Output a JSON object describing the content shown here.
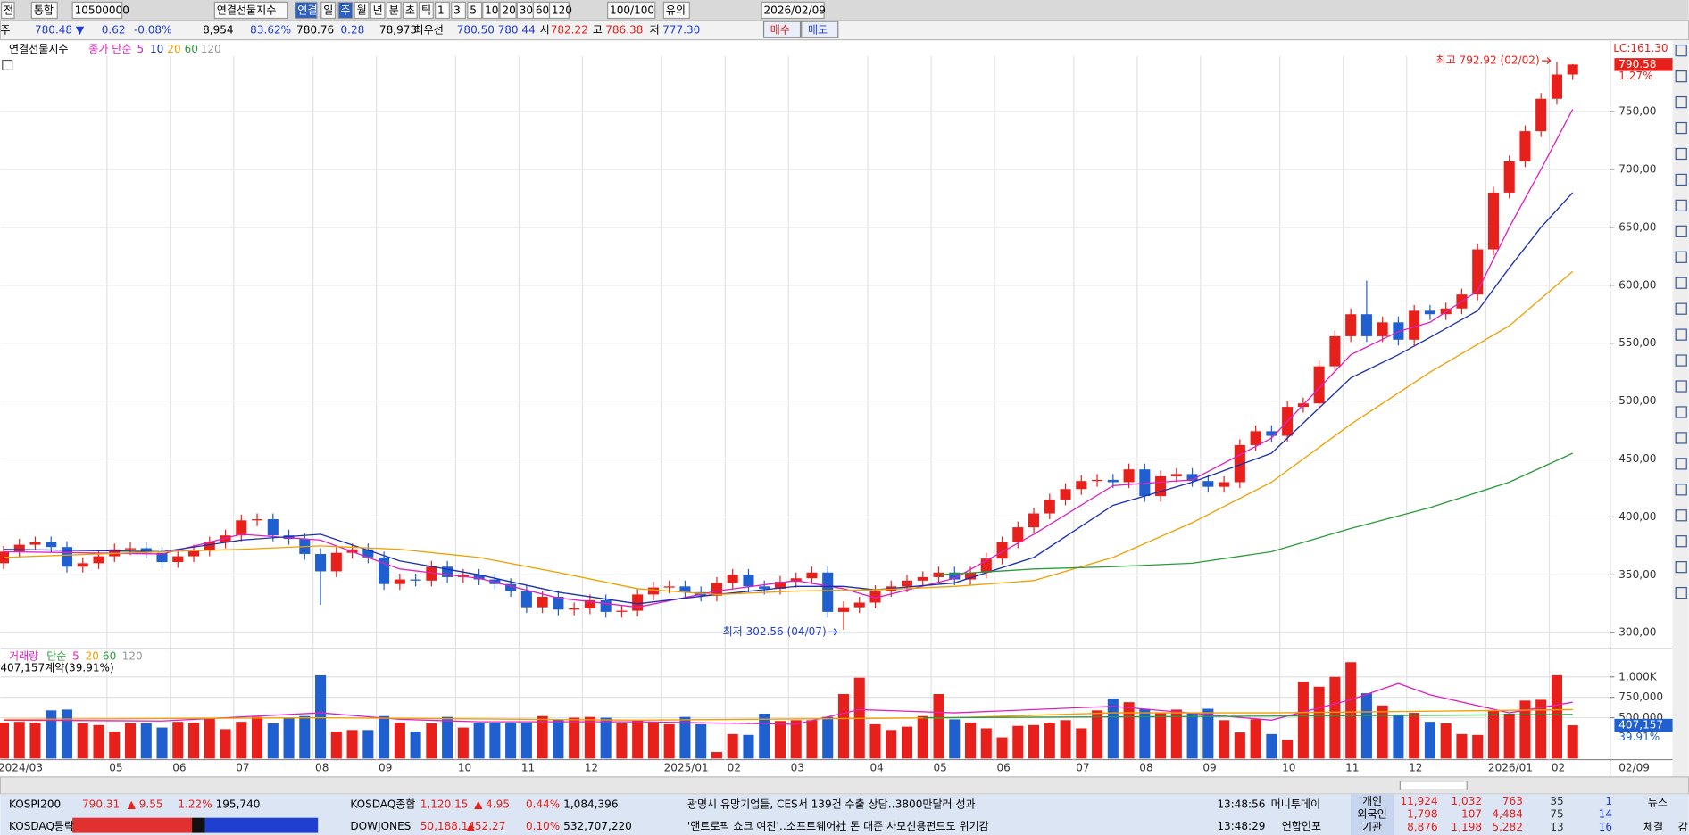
{
  "toolbar": [
    "전",
    "통합",
    "10500000",
    "연결선물지수",
    "연결",
    "일",
    "주",
    "월",
    "년",
    "분",
    "초",
    "틱",
    "1",
    "3",
    "5",
    "10",
    "20",
    "30",
    "60",
    "120",
    "100/100",
    "유의",
    "2026/02/09"
  ],
  "quote": [
    "주",
    "780.48 ▼",
    "0.62",
    "-0.08%",
    "8,954",
    "83.62%",
    "780.76",
    "0.28",
    "78,973",
    "최우선",
    "780.50",
    "780.44",
    "시",
    "782.22",
    "고",
    "786.38",
    "저",
    "777.30",
    "매수",
    "매도"
  ],
  "chart_data": [
    {
      "type": "candlestick",
      "title": "연결선물지수",
      "subtitle": "종가 단순",
      "categories": [
        "2024/03",
        null,
        null,
        null,
        null,
        null,
        null,
        "05",
        null,
        null,
        null,
        "06",
        null,
        null,
        null,
        "07",
        null,
        null,
        null,
        null,
        "08",
        null,
        null,
        null,
        "09",
        null,
        null,
        null,
        null,
        "10",
        null,
        null,
        null,
        "11",
        null,
        null,
        null,
        "12",
        null,
        null,
        null,
        null,
        "2025/01",
        null,
        null,
        null,
        "02",
        null,
        null,
        null,
        "03",
        null,
        null,
        null,
        null,
        "04",
        null,
        null,
        null,
        "05",
        null,
        null,
        null,
        "06",
        null,
        null,
        null,
        null,
        "07",
        null,
        null,
        null,
        "08",
        null,
        null,
        null,
        "09",
        null,
        null,
        null,
        null,
        "10",
        null,
        null,
        null,
        "11",
        null,
        null,
        null,
        "12",
        null,
        null,
        null,
        null,
        "2026/01",
        null,
        null,
        null,
        "02",
        null
      ],
      "x_end_label": "02/09",
      "open": [
        360,
        370,
        376,
        378,
        374,
        357,
        360,
        366,
        372,
        373,
        369,
        361,
        366,
        371,
        378,
        384,
        397,
        398,
        384,
        381,
        368,
        353,
        369,
        372,
        365,
        342,
        346,
        345,
        357,
        348,
        350,
        346,
        342,
        336,
        322,
        331,
        320,
        321,
        328,
        318,
        319,
        333,
        339,
        340,
        335,
        332,
        343,
        350,
        340,
        338,
        344,
        347,
        352,
        318,
        322,
        326,
        336,
        340,
        345,
        348,
        352,
        346,
        352,
        364,
        378,
        391,
        403,
        415,
        424,
        431,
        432,
        430,
        441,
        418,
        435,
        437,
        431,
        426,
        430,
        462,
        474,
        470,
        495,
        498,
        530,
        556,
        575,
        556,
        568,
        553,
        578,
        575,
        580,
        592,
        631,
        680,
        707,
        733,
        761,
        782
      ],
      "high": [
        375,
        381,
        383,
        383,
        379,
        365,
        371,
        377,
        378,
        378,
        374,
        371,
        376,
        383,
        389,
        402,
        403,
        403,
        389,
        386,
        373,
        374,
        377,
        377,
        370,
        351,
        351,
        362,
        362,
        355,
        355,
        351,
        347,
        341,
        336,
        336,
        326,
        333,
        333,
        324,
        338,
        344,
        345,
        345,
        340,
        348,
        355,
        355,
        345,
        349,
        352,
        357,
        357,
        327,
        331,
        341,
        345,
        350,
        353,
        357,
        357,
        357,
        369,
        383,
        396,
        408,
        420,
        429,
        436,
        437,
        437,
        446,
        446,
        440,
        442,
        442,
        436,
        435,
        467,
        479,
        479,
        500,
        503,
        535,
        561,
        580,
        604,
        573,
        573,
        583,
        583,
        585,
        597,
        636,
        685,
        712,
        738,
        766,
        792.92,
        791
      ],
      "low": [
        355,
        365,
        371,
        369,
        352,
        352,
        355,
        361,
        367,
        364,
        356,
        356,
        361,
        366,
        373,
        379,
        392,
        379,
        376,
        363,
        324,
        348,
        364,
        360,
        337,
        337,
        340,
        340,
        343,
        343,
        341,
        337,
        331,
        317,
        317,
        315,
        315,
        316,
        313,
        313,
        314,
        328,
        334,
        330,
        327,
        327,
        338,
        335,
        333,
        333,
        339,
        342,
        313,
        302.56,
        317,
        321,
        331,
        335,
        340,
        343,
        341,
        341,
        347,
        359,
        373,
        386,
        398,
        410,
        419,
        426,
        425,
        425,
        413,
        413,
        430,
        426,
        421,
        421,
        425,
        457,
        465,
        465,
        490,
        493,
        525,
        551,
        551,
        551,
        548,
        548,
        570,
        570,
        575,
        587,
        626,
        675,
        702,
        728,
        756,
        777.3
      ],
      "close": [
        370,
        376,
        378,
        374,
        357,
        360,
        366,
        372,
        373,
        369,
        361,
        366,
        371,
        378,
        384,
        397,
        398,
        384,
        381,
        368,
        353,
        369,
        372,
        365,
        342,
        346,
        345,
        357,
        348,
        350,
        346,
        342,
        336,
        322,
        331,
        320,
        321,
        328,
        318,
        319,
        333,
        339,
        340,
        335,
        332,
        343,
        350,
        340,
        338,
        344,
        347,
        352,
        318,
        322,
        326,
        336,
        340,
        345,
        348,
        352,
        346,
        352,
        364,
        378,
        391,
        403,
        415,
        424,
        431,
        432,
        430,
        441,
        418,
        435,
        437,
        431,
        426,
        430,
        462,
        474,
        470,
        495,
        498,
        530,
        556,
        575,
        556,
        568,
        553,
        578,
        575,
        580,
        592,
        631,
        680,
        707,
        733,
        761,
        782,
        790.58
      ],
      "up_color": "#e8201b",
      "down_color": "#1f5fcf",
      "ylim": [
        287,
        798
      ],
      "yticks": [
        {
          "value": 300,
          "label": "300,00"
        },
        {
          "value": 350,
          "label": "350,00"
        },
        {
          "value": 400,
          "label": "400,00"
        },
        {
          "value": 450,
          "label": "450,00"
        },
        {
          "value": 500,
          "label": "500,00"
        },
        {
          "value": 550,
          "label": "550,00"
        },
        {
          "value": 600,
          "label": "600,00"
        },
        {
          "value": 650,
          "label": "650,00"
        },
        {
          "value": 700,
          "label": "700,00"
        },
        {
          "value": 750,
          "label": "750,00"
        }
      ],
      "grid": true,
      "series": [
        {
          "name": "5",
          "color": "#e020c0",
          "x": [
            0,
            10,
            15,
            20,
            25,
            30,
            35,
            40,
            45,
            50,
            53,
            55,
            60,
            65,
            70,
            75,
            80,
            85,
            88,
            90,
            93,
            95,
            97,
            99
          ],
          "values": [
            370,
            368,
            385,
            380,
            355,
            347,
            330,
            322,
            336,
            345,
            338,
            330,
            347,
            385,
            427,
            432,
            468,
            540,
            560,
            568,
            595,
            650,
            700,
            752
          ]
        },
        {
          "name": "10",
          "color": "#1a2fb0",
          "x": [
            0,
            10,
            15,
            20,
            25,
            30,
            35,
            40,
            45,
            50,
            53,
            55,
            60,
            65,
            70,
            75,
            80,
            85,
            88,
            90,
            93,
            95,
            97,
            99
          ],
          "values": [
            372,
            370,
            380,
            385,
            362,
            350,
            335,
            325,
            333,
            340,
            340,
            337,
            343,
            365,
            410,
            430,
            455,
            520,
            540,
            555,
            578,
            615,
            650,
            680
          ]
        },
        {
          "name": "20",
          "color": "#f0a000",
          "x": [
            0,
            10,
            15,
            20,
            25,
            30,
            35,
            40,
            45,
            50,
            55,
            60,
            65,
            70,
            75,
            80,
            85,
            90,
            95,
            99
          ],
          "values": [
            365,
            370,
            372,
            375,
            372,
            365,
            352,
            338,
            333,
            336,
            337,
            340,
            345,
            365,
            395,
            430,
            480,
            525,
            565,
            612
          ]
        },
        {
          "name": "60",
          "color": "#2a9a3a",
          "x": [
            59,
            65,
            70,
            75,
            80,
            85,
            90,
            95,
            99
          ],
          "values": [
            350,
            355,
            357,
            360,
            370,
            390,
            408,
            430,
            455
          ]
        },
        {
          "name": "120",
          "color": "#999999",
          "x": [],
          "values": []
        }
      ],
      "annotations": [
        "최고 792.92 (02/02)",
        "최저 302.56 (04/07)"
      ],
      "lc_label": "LC:161.30",
      "change_label": "1.27%"
    },
    {
      "type": "bar",
      "title": "거래량",
      "subtitle": "단순",
      "header_value": "407,157계약(39.91%)",
      "values": [
        440000,
        450000,
        440000,
        590000,
        600000,
        430000,
        410000,
        330000,
        430000,
        430000,
        380000,
        450000,
        440000,
        500000,
        360000,
        450000,
        510000,
        430000,
        500000,
        520000,
        1020000,
        330000,
        350000,
        350000,
        520000,
        440000,
        330000,
        430000,
        510000,
        380000,
        440000,
        440000,
        440000,
        440000,
        520000,
        480000,
        500000,
        510000,
        500000,
        430000,
        470000,
        450000,
        420000,
        510000,
        420000,
        80000,
        300000,
        290000,
        550000,
        460000,
        470000,
        470000,
        510000,
        790000,
        990000,
        420000,
        350000,
        390000,
        520000,
        790000,
        480000,
        440000,
        370000,
        260000,
        400000,
        410000,
        440000,
        470000,
        370000,
        590000,
        730000,
        690000,
        610000,
        560000,
        600000,
        560000,
        610000,
        470000,
        320000,
        480000,
        300000,
        230000,
        940000,
        880000,
        1000000,
        1180000,
        800000,
        650000,
        540000,
        560000,
        450000,
        430000,
        300000,
        290000,
        590000,
        550000,
        710000,
        720000,
        1020000,
        407157
      ],
      "ylim": [
        0,
        1330000
      ],
      "yticks": [
        {
          "value": 500000,
          "label": "500,000"
        },
        {
          "value": 750000,
          "label": "750,000"
        },
        {
          "value": 1000000,
          "label": "1,000K"
        }
      ],
      "series": [
        {
          "name": "5",
          "color": "#e020c0",
          "x": [
            0,
            10,
            20,
            25,
            30,
            40,
            50,
            54,
            60,
            70,
            80,
            85,
            88,
            90,
            95,
            99
          ],
          "values": [
            470000,
            460000,
            560000,
            480000,
            450000,
            450000,
            420000,
            600000,
            560000,
            640000,
            470000,
            720000,
            920000,
            780000,
            560000,
            690000
          ]
        },
        {
          "name": "20",
          "color": "#f0a000",
          "x": [
            0,
            20,
            40,
            60,
            70,
            80,
            90,
            99
          ],
          "values": [
            480000,
            500000,
            470000,
            500000,
            560000,
            560000,
            580000,
            600000
          ]
        },
        {
          "name": "60",
          "color": "#2a9a3a",
          "x": [
            58,
            70,
            80,
            90,
            99
          ],
          "values": [
            500000,
            510000,
            520000,
            530000,
            540000
          ]
        },
        {
          "name": "120",
          "color": "#999999",
          "x": [],
          "values": []
        }
      ],
      "last_label": "407,157",
      "last_share": "39.91%"
    }
  ],
  "ticker": {
    "rows": [
      [
        "KOSPI200",
        "790.31",
        "▲ 9.55",
        "1.22%",
        "195,740",
        "KOSDAQ종합",
        "1,120.15",
        "▲ 4.95",
        "0.44%",
        "1,084,396",
        "광명시 유망기업들, CES서 139건 수출 상담‥3800만달러 성과",
        "13:48:56",
        "머니투데이"
      ],
      [
        "KOSDAQ등락",
        "DOWJONES",
        "50,188.14",
        "▲52.27",
        "0.10%",
        "532,707,220",
        "'앤트로픽 쇼크 여진'‥소프트웨어社 돈 대준 사모신용펀드도 위기감",
        "13:48:29",
        "연합인포"
      ]
    ]
  },
  "investors": {
    "rows": [
      [
        "개인",
        "11,924",
        "1,032",
        "763",
        "35",
        "1"
      ],
      [
        "외국인",
        "1,798",
        "107",
        "4,484",
        "75",
        "14"
      ],
      [
        "기관",
        "8,876",
        "1,198",
        "5,282",
        "13",
        "16"
      ]
    ]
  },
  "tabs": [
    "뉴스",
    "체결",
    "감"
  ]
}
